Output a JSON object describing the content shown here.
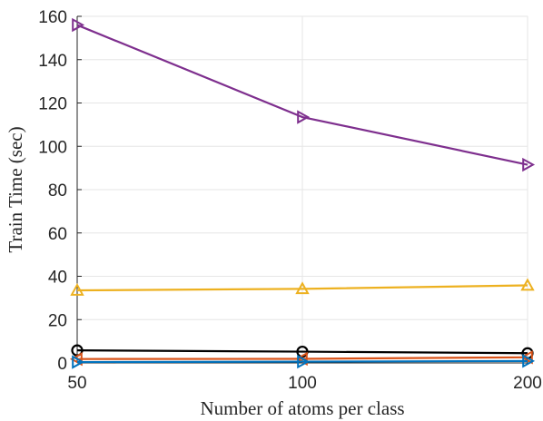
{
  "chart_data": {
    "type": "line",
    "xlabel": "Number of atoms per class",
    "ylabel": "Train Time (sec)",
    "x": [
      50,
      100,
      200
    ],
    "x_ticks": [
      50,
      100,
      200
    ],
    "y_ticks": [
      0,
      20,
      40,
      60,
      80,
      100,
      120,
      140,
      160
    ],
    "ylim": [
      0,
      160
    ],
    "grid": true,
    "series": [
      {
        "values": [
          156,
          113.5,
          91.5
        ],
        "color": "#7E2F8E",
        "marker": "triangle-right"
      },
      {
        "values": [
          33.5,
          34.2,
          35.8
        ],
        "color": "#EDB120",
        "marker": "triangle-up"
      },
      {
        "values": [
          5.8,
          5.2,
          4.5
        ],
        "color": "#000000",
        "marker": "circle"
      },
      {
        "values": [
          1.8,
          1.9,
          2.6
        ],
        "color": "#D95319",
        "marker": "triangle-left"
      },
      {
        "values": [
          0.4,
          0.6,
          0.9
        ],
        "color": "#0072BD",
        "marker": "triangle-right"
      }
    ]
  }
}
